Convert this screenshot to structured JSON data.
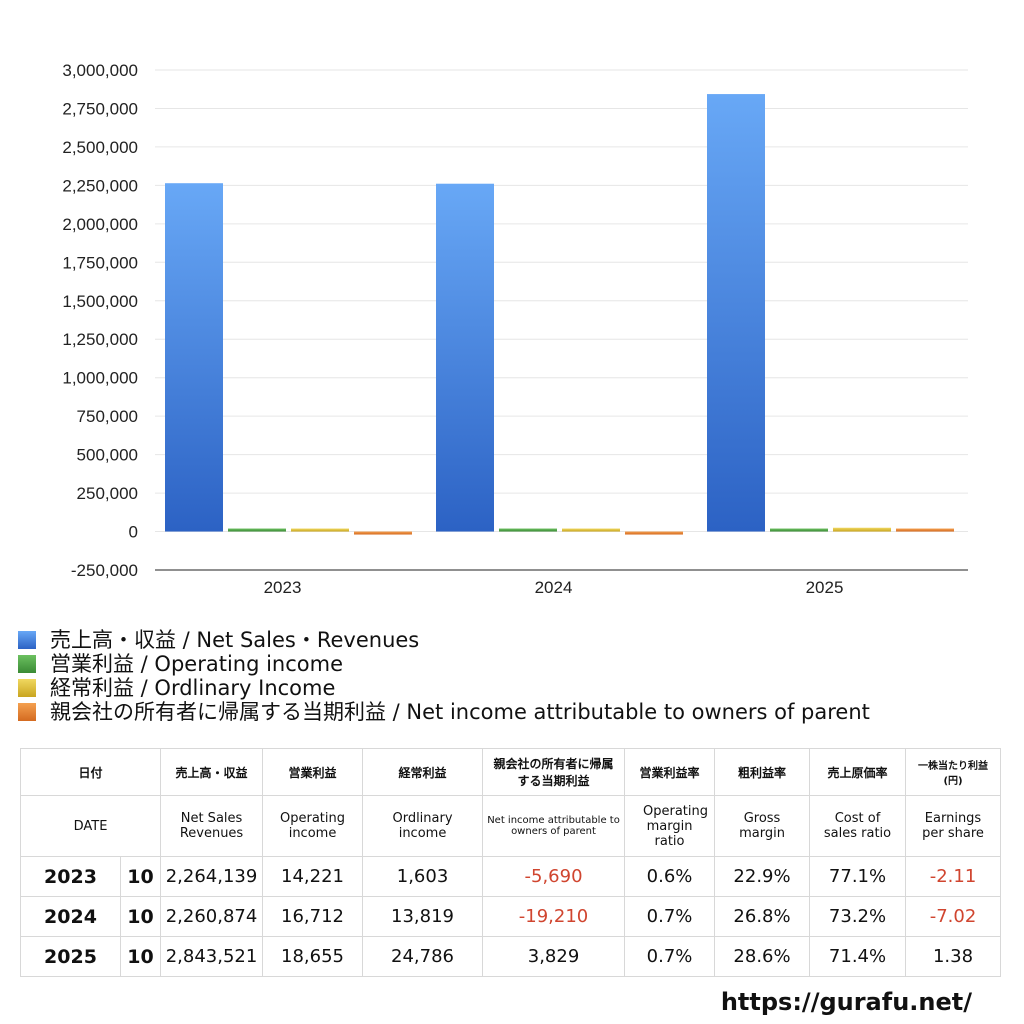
{
  "chart_data": {
    "type": "bar",
    "categories": [
      "2023",
      "2024",
      "2025"
    ],
    "series": [
      {
        "name": "売上高・収益 / Net Sales・Revenues",
        "color": "#3d7fe0",
        "values": [
          2264139,
          2260874,
          2843521
        ]
      },
      {
        "name": "営業利益 / Operating income",
        "color": "#4a9a3f",
        "values": [
          14221,
          16712,
          18655
        ]
      },
      {
        "name": "経常利益 / Ordlinary Income",
        "color": "#d8b830",
        "values": [
          1603,
          13819,
          24786
        ]
      },
      {
        "name": "親会社の所有者に帰属する当期利益 / Net income attributable to owners of parent",
        "color": "#e07a2c",
        "values": [
          -5690,
          -19210,
          3829
        ]
      }
    ],
    "yticks": [
      "3,000,000",
      "2,750,000",
      "2,500,000",
      "2,250,000",
      "2,000,000",
      "1,750,000",
      "1,500,000",
      "1,250,000",
      "1,000,000",
      "750,000",
      "500,000",
      "250,000",
      "0",
      "-250,000"
    ],
    "ylim": [
      -250000,
      3000000
    ],
    "grid": true,
    "legend_position": "bottom-left"
  },
  "table": {
    "header_jp": [
      "日付",
      "売上高・収益",
      "営業利益",
      "経常利益",
      "親会社の所有者に帰属する当期利益",
      "営業利益率",
      "粗利益率",
      "売上原価率",
      "一株当たり利益(円)"
    ],
    "header_en": [
      "DATE",
      "Net Sales Revenues",
      "Operating income",
      "Ordlinary income",
      "Net income attributable to owners of parent",
      "Operating margin ratio",
      "Gross margin",
      "Cost of sales ratio",
      "Earnings per share"
    ],
    "rows": [
      {
        "year": "2023",
        "month": "10",
        "sales": "2,264,139",
        "op": "14,221",
        "ord": "1,603",
        "net": "-5,690",
        "opm": "0.6%",
        "gm": "22.9%",
        "cos": "77.1%",
        "eps": "-2.11"
      },
      {
        "year": "2024",
        "month": "10",
        "sales": "2,260,874",
        "op": "16,712",
        "ord": "13,819",
        "net": "-19,210",
        "opm": "0.7%",
        "gm": "26.8%",
        "cos": "73.2%",
        "eps": "-7.02"
      },
      {
        "year": "2025",
        "month": "10",
        "sales": "2,843,521",
        "op": "18,655",
        "ord": "24,786",
        "net": "3,829",
        "opm": "0.7%",
        "gm": "28.6%",
        "cos": "71.4%",
        "eps": "1.38"
      }
    ]
  },
  "site": "https://gurafu.net/"
}
